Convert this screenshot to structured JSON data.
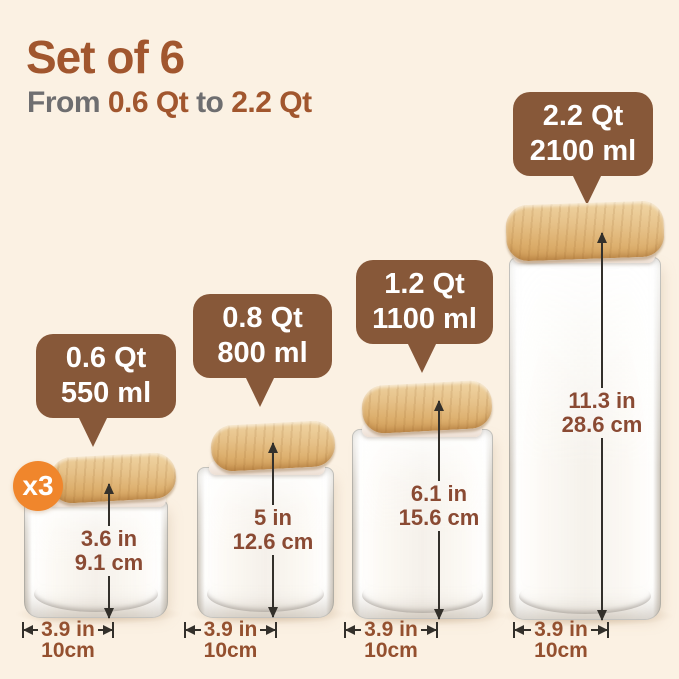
{
  "header": {
    "title": "Set of 6",
    "subtitle": {
      "prefix": "From",
      "from_value": "0.6 Qt",
      "connector": "to",
      "to_value": "2.2 Qt"
    }
  },
  "badge": {
    "label": "x3"
  },
  "colors": {
    "background": "#fbf1e3",
    "title_brown": "#a1562e",
    "subtitle_gray": "#6e6e70",
    "callout_bg": "#875839",
    "callout_text": "#ffffff",
    "badge_orange": "#f0862c",
    "dimension_text": "#8a4a33",
    "arrow": "#33302b",
    "bamboo_lid": "#e3bb7d",
    "seal_ring": "#f6eee8"
  },
  "containers": [
    {
      "name": "0.6 Qt glass container",
      "callout": {
        "line1": "0.6 Qt",
        "line2": "550 ml"
      },
      "height_label": {
        "line1": "3.6 in",
        "line2": "9.1 cm"
      },
      "width_label": {
        "line1": "3.9 in",
        "line2": "10cm"
      }
    },
    {
      "name": "0.8 Qt glass container",
      "callout": {
        "line1": "0.8 Qt",
        "line2": "800 ml"
      },
      "height_label": {
        "line1": "5 in",
        "line2": "12.6 cm"
      },
      "width_label": {
        "line1": "3.9 in",
        "line2": "10cm"
      }
    },
    {
      "name": "1.2 Qt glass container",
      "callout": {
        "line1": "1.2 Qt",
        "line2": "1100 ml"
      },
      "height_label": {
        "line1": "6.1 in",
        "line2": "15.6 cm"
      },
      "width_label": {
        "line1": "3.9 in",
        "line2": "10cm"
      }
    },
    {
      "name": "2.2 Qt glass container",
      "callout": {
        "line1": "2.2 Qt",
        "line2": "2100 ml"
      },
      "height_label": {
        "line1": "11.3 in",
        "line2": "28.6 cm"
      },
      "width_label": {
        "line1": "3.9 in",
        "line2": "10cm"
      }
    }
  ]
}
